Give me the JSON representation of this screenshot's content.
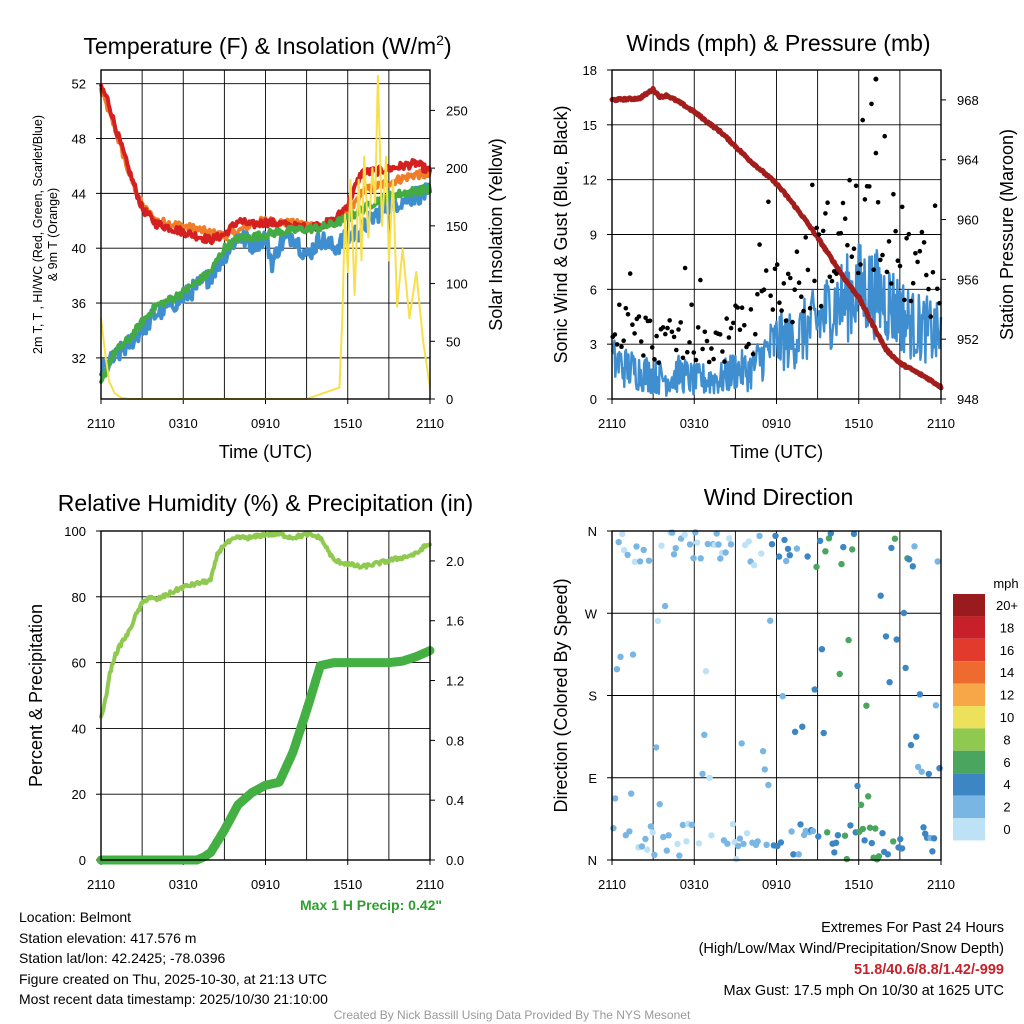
{
  "colors": {
    "red": "#d42020",
    "orange": "#f07d2a",
    "green": "#44aa44",
    "blue": "#3f8fd0",
    "yellow": "#f7e04b",
    "maroon": "#a31d1d",
    "black": "#000000",
    "rh": "#8fc94f",
    "precip": "#44b044"
  },
  "chart_data": [
    {
      "type": "line",
      "id": "temp",
      "title": "Temperature (F) & Insolation (W/m",
      "title_sup": "2",
      "title_end": ")",
      "xlabel": "Time (UTC)",
      "ylabel_line1": "2m T, T  , HI/WC (Red, Green, Scarlet/Blue)",
      "ylabel_line2": "& 9m T (Orange)",
      "y2label": "Solar Insolation (Yellow)",
      "xticks": [
        "2110",
        "0310",
        "0910",
        "1510",
        "2110"
      ],
      "x_range_hours": [
        0,
        24
      ],
      "ylim": [
        29,
        53
      ],
      "yticks": [
        32,
        36,
        40,
        44,
        48,
        52
      ],
      "y2lim": [
        0,
        285
      ],
      "y2ticks": [
        0,
        50,
        100,
        150,
        200,
        250
      ],
      "series": [
        {
          "name": "9m T",
          "color": "orange",
          "x": [
            0,
            0.5,
            1,
            2,
            3,
            4,
            5,
            6,
            7,
            8,
            9,
            10,
            11,
            12,
            13,
            14,
            15,
            16,
            17,
            18,
            19,
            20,
            21,
            22,
            23,
            24
          ],
          "values": [
            51.5,
            50.2,
            48.8,
            45.6,
            43.1,
            42.0,
            41.8,
            41.6,
            41.4,
            41.1,
            40.9,
            41.2,
            41.8,
            42.0,
            41.9,
            41.8,
            41.7,
            41.6,
            41.9,
            42.4,
            44.1,
            44.5,
            44.8,
            45.1,
            45.4,
            45.3
          ]
        },
        {
          "name": "2m T",
          "color": "red",
          "x": [
            0,
            0.5,
            1,
            2,
            3,
            4,
            5,
            6,
            7,
            8,
            9,
            10,
            11,
            12,
            13,
            14,
            15,
            16,
            17,
            18,
            19,
            20,
            21,
            22,
            23,
            24
          ],
          "values": [
            51.8,
            50.8,
            49.0,
            45.8,
            42.9,
            41.8,
            41.5,
            41.2,
            40.9,
            40.6,
            41.0,
            42.0,
            41.7,
            41.9,
            41.8,
            41.6,
            41.5,
            41.7,
            42.0,
            43.2,
            45.5,
            45.6,
            45.8,
            46.0,
            46.2,
            45.6
          ]
        },
        {
          "name": "HI/WC",
          "color": "blue",
          "x": [
            0,
            2,
            4,
            6,
            8,
            9,
            10,
            11,
            12,
            12.5,
            13,
            14,
            15,
            16,
            17,
            18,
            19,
            20,
            21,
            22,
            23,
            24
          ],
          "values": [
            31.0,
            33.0,
            35.2,
            36.4,
            38.0,
            39.5,
            40.9,
            40.3,
            40.8,
            38.9,
            40.2,
            41.0,
            39.4,
            40.7,
            40.0,
            40.8,
            41.3,
            42.4,
            43.2,
            43.5,
            43.9,
            44.0
          ]
        },
        {
          "name": "Td",
          "color": "green",
          "x": [
            0,
            0.5,
            1,
            2,
            3,
            4,
            5,
            6,
            7,
            8,
            9,
            10,
            11,
            12,
            13,
            14,
            15,
            16,
            17,
            18,
            19,
            20,
            21,
            22,
            23,
            24
          ],
          "values": [
            30.0,
            31.5,
            32.4,
            33.3,
            34.6,
            35.8,
            36.2,
            36.8,
            37.5,
            38.3,
            40.0,
            40.7,
            40.8,
            41.0,
            41.2,
            41.3,
            41.4,
            41.5,
            41.8,
            42.2,
            42.8,
            43.4,
            43.8,
            44.0,
            44.2,
            44.3
          ]
        },
        {
          "name": "Solar",
          "color": "yellow",
          "axis": "y2",
          "x": [
            0,
            0.3,
            0.6,
            1,
            1.5,
            2,
            3,
            5,
            8,
            11,
            13,
            15,
            17.4,
            17.6,
            17.8,
            18.0,
            18.2,
            18.5,
            18.8,
            19.0,
            19.2,
            19.5,
            19.8,
            20.0,
            20.2,
            20.5,
            20.8,
            21.0,
            21.3,
            21.6,
            22.0,
            22.5,
            23.0,
            23.5,
            24
          ],
          "values": [
            70,
            40,
            15,
            5,
            1,
            0,
            0,
            0,
            0,
            0,
            0,
            0,
            10,
            70,
            160,
            110,
            190,
            90,
            190,
            120,
            210,
            140,
            200,
            170,
            280,
            150,
            210,
            120,
            190,
            80,
            130,
            70,
            110,
            50,
            10
          ]
        }
      ]
    },
    {
      "type": "line",
      "id": "wind",
      "title": "Winds (mph) & Pressure (mb)",
      "xlabel": "Time (UTC)",
      "ylabel": "Sonic Wind & Gust (Blue, Black)",
      "y2label": "Station Pressure (Maroon)",
      "xticks": [
        "2110",
        "0310",
        "0910",
        "1510",
        "2110"
      ],
      "x_range_hours": [
        0,
        24
      ],
      "ylim": [
        0,
        18
      ],
      "yticks": [
        0,
        3,
        6,
        9,
        12,
        15,
        18
      ],
      "y2lim": [
        948,
        970
      ],
      "y2ticks": [
        948,
        952,
        956,
        960,
        964,
        968
      ],
      "series": [
        {
          "name": "Sonic Wind",
          "color": "blue",
          "x": [
            0,
            1,
            2,
            3,
            4,
            5,
            6,
            7,
            8,
            9,
            10,
            11,
            12,
            13,
            14,
            15,
            16,
            17,
            18,
            19,
            20,
            21,
            22,
            23,
            24
          ],
          "values": [
            2.0,
            1.6,
            1.4,
            1.2,
            1.0,
            1.3,
            0.9,
            1.0,
            1.0,
            1.5,
            1.4,
            2.2,
            3.0,
            3.0,
            3.5,
            4.0,
            4.8,
            5.2,
            5.8,
            5.6,
            5.2,
            4.5,
            3.8,
            3.6,
            3.2
          ]
        },
        {
          "name": "Pressure",
          "color": "maroon",
          "axis": "y2",
          "x": [
            0,
            2,
            3,
            3.5,
            4,
            5,
            6,
            8,
            10,
            12,
            13,
            14,
            15,
            16,
            17,
            18,
            19,
            20,
            21,
            22,
            23,
            24
          ],
          "values": [
            968.0,
            968.1,
            968.7,
            968.2,
            968.3,
            967.8,
            967.2,
            965.8,
            964.0,
            962.4,
            961.3,
            960.1,
            958.8,
            957.4,
            956.0,
            954.8,
            953.0,
            951.3,
            950.4,
            949.9,
            949.4,
            948.8
          ]
        }
      ],
      "gust_points": {
        "name": "Gust",
        "color": "black",
        "max_gust": 17.5,
        "max_gust_hour": 19.25
      }
    },
    {
      "type": "line",
      "id": "rh",
      "title": "Relative Humidity (%) & Precipitation (in)",
      "xlabel": "",
      "ylabel": "Percent & Precipitation",
      "xticks": [
        "2110",
        "0310",
        "0910",
        "1510",
        "2110"
      ],
      "x_range_hours": [
        0,
        24
      ],
      "ylim": [
        0,
        100
      ],
      "yticks": [
        0,
        20,
        40,
        60,
        80,
        100
      ],
      "y2lim": [
        0,
        2.2
      ],
      "y2ticks": [
        "0.0",
        "0.4",
        "0.8",
        "1.2",
        "1.6",
        "2.0"
      ],
      "series": [
        {
          "name": "RH",
          "color": "rh",
          "x": [
            0,
            0.3,
            0.6,
            1,
            1.5,
            2,
            2.5,
            3,
            3.5,
            4,
            5,
            6,
            7,
            8,
            8.5,
            9,
            10,
            11,
            12,
            13,
            14,
            15,
            16,
            17,
            18,
            19,
            20,
            21,
            22,
            23,
            23.5,
            24
          ],
          "values": [
            43,
            48,
            56,
            62,
            66,
            69,
            74,
            78,
            80,
            79,
            81,
            83,
            84,
            85,
            93,
            96,
            98,
            98,
            99,
            99,
            98,
            99,
            98,
            91,
            90,
            89,
            90,
            91,
            92,
            93,
            95,
            96
          ]
        },
        {
          "name": "Precip",
          "color": "precip",
          "axis": "y2",
          "x": [
            0,
            7,
            7.5,
            8,
            9,
            10,
            11,
            12,
            13,
            14,
            15,
            16,
            17,
            18,
            19,
            20,
            21,
            22,
            23,
            24
          ],
          "values": [
            0,
            0,
            0.02,
            0.05,
            0.2,
            0.37,
            0.45,
            0.5,
            0.52,
            0.72,
            1.0,
            1.3,
            1.32,
            1.32,
            1.32,
            1.32,
            1.32,
            1.33,
            1.36,
            1.4
          ]
        }
      ],
      "max_precip_label": "Max 1 H Precip: 0.42\""
    },
    {
      "type": "scatter",
      "id": "wdir",
      "title": "Wind Direction",
      "ylabel": "Direction (Colored By Speed)",
      "xticks": [
        "2110",
        "0310",
        "0910",
        "1510",
        "2110"
      ],
      "yticks": [
        "N",
        "E",
        "S",
        "W",
        "N"
      ],
      "ylim_degrees": [
        0,
        360
      ],
      "legend": {
        "unit": "mph",
        "labels": [
          "20+",
          "18",
          "16",
          "14",
          "12",
          "10",
          "8",
          "6",
          "4",
          "2",
          "0"
        ],
        "colors": [
          "#9a1b1e",
          "#c8202a",
          "#e23b2d",
          "#ef6a2e",
          "#f7a648",
          "#ede05a",
          "#8fc94f",
          "#4aa55e",
          "#3c86c4",
          "#7ab6e4",
          "#bde2f6"
        ]
      }
    }
  ],
  "info": {
    "location": "Location: Belmont",
    "elevation": "Station elevation: 417.576 m",
    "latlon": "Station lat/lon: 42.2425; -78.0396",
    "created": "Figure created on Thu, 2025-10-30, at 21:13 UTC",
    "recent": "Most recent data timestamp: 2025/10/30 21:10:00"
  },
  "extremes": {
    "title": "Extremes For Past 24 Hours",
    "subtitle": "(High/Low/Max Wind/Precipitation/Snow Depth)",
    "values": "51.8/40.6/8.8/1.42/-999",
    "max_gust": "Max Gust: 17.5 mph On 10/30 at 1625 UTC"
  },
  "credit": "Created By Nick Bassill Using Data Provided By The NYS Mesonet"
}
